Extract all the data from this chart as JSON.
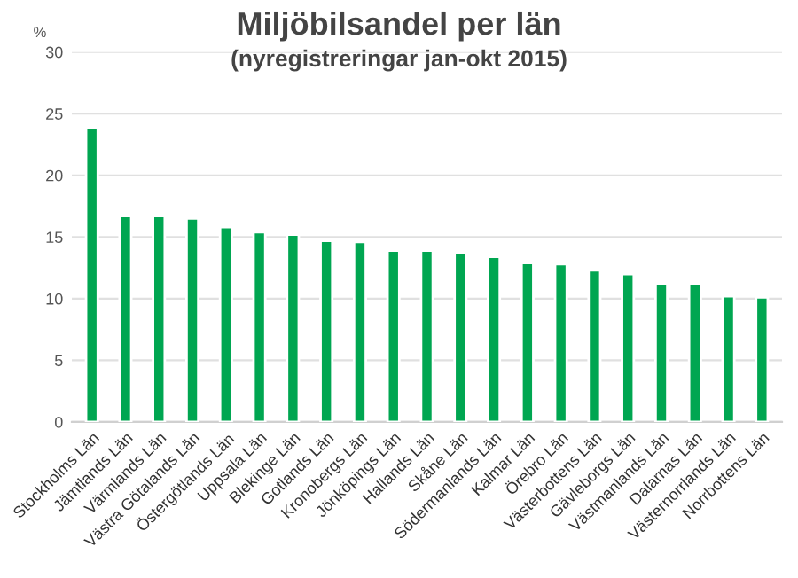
{
  "chart_data": {
    "type": "bar",
    "title": "Miljöbilsandel per län",
    "subtitle": "(nyregistreringar jan-okt 2015)",
    "ylabel": "%",
    "categories": [
      "Stockholms Län",
      "Jämtlands Län",
      "Värmlands Län",
      "Västra Götalands Län",
      "Östergötlands Län",
      "Uppsala Län",
      "Blekinge Län",
      "Gotlands Län",
      "Kronobergs Län",
      "Jönköpings Län",
      "Hallands Län",
      "Skåne Län",
      "Södermanlands Län",
      "Kalmar Län",
      "Örebro Län",
      "Västerbottens Län",
      "Gävleborgs Län",
      "Västmanlands Län",
      "Dalarnas Län",
      "Västernorrlands Län",
      "Norrbottens Län"
    ],
    "values": [
      23.9,
      16.7,
      16.7,
      16.5,
      15.8,
      15.4,
      15.2,
      14.7,
      14.6,
      13.9,
      13.9,
      13.7,
      13.4,
      12.9,
      12.8,
      12.3,
      12.0,
      11.2,
      11.2,
      10.2,
      10.1
    ],
    "color": "#00a651",
    "ylim": [
      0,
      30
    ],
    "yticks": [
      0,
      5,
      10,
      15,
      20,
      25,
      30
    ],
    "grid": "y"
  }
}
